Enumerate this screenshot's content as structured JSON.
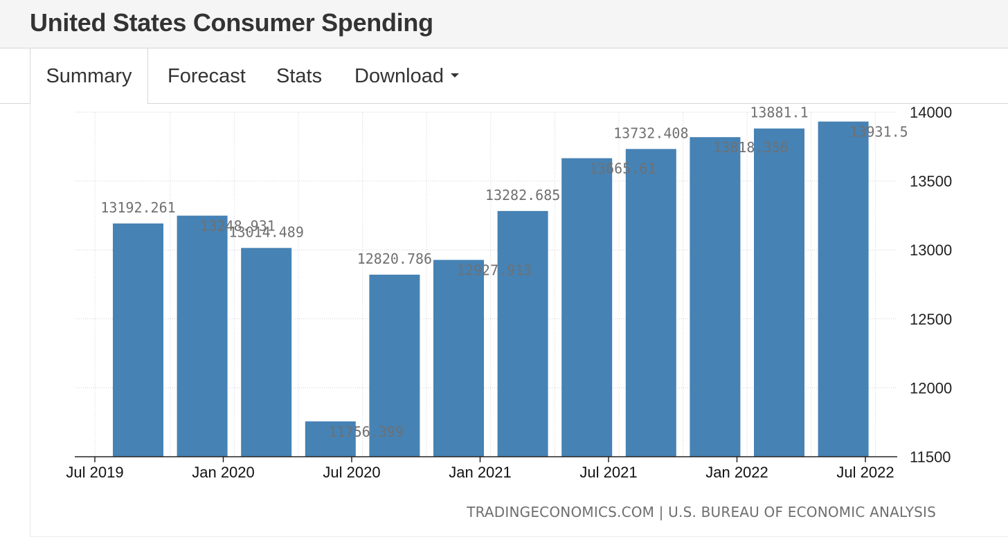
{
  "header": {
    "title": "United States Consumer Spending"
  },
  "tabs": [
    {
      "label": "Summary",
      "active": true
    },
    {
      "label": "Forecast"
    },
    {
      "label": "Stats"
    },
    {
      "label": "Download"
    }
  ],
  "chart_data": {
    "type": "bar",
    "title": "United States Consumer Spending",
    "xlabel": "",
    "ylabel": "",
    "categories": [
      "Q3 2019",
      "Q4 2019",
      "Q1 2020",
      "Q2 2020",
      "Q3 2020",
      "Q4 2020",
      "Q1 2021",
      "Q2 2021",
      "Q3 2021",
      "Q4 2021",
      "Q1 2022",
      "Q2 2022"
    ],
    "values": [
      13192.261,
      13248.931,
      13014.489,
      11756.399,
      12820.786,
      12927.913,
      13282.685,
      13665.61,
      13732.408,
      13818.356,
      13881.1,
      13931.5
    ],
    "value_labels": [
      "13192.261",
      "13248.931",
      "13014.489",
      "11756.399",
      "12820.786",
      "12927.913",
      "13282.685",
      "13665.61",
      "13732.408",
      "13818.356",
      "13881.1",
      "13931.5"
    ],
    "x_ticks": [
      "Jul 2019",
      "Jan 2020",
      "Jul 2020",
      "Jan 2021",
      "Jul 2021",
      "Jan 2022",
      "Jul 2022"
    ],
    "y_ticks": [
      "11500",
      "12000",
      "12500",
      "13000",
      "13500",
      "14000"
    ],
    "ylim": [
      11500,
      14000
    ],
    "y_axis_side": "right",
    "grid": true,
    "bar_color": "#4682b4"
  },
  "source": "TRADINGECONOMICS.COM | U.S. BUREAU OF ECONOMIC ANALYSIS"
}
